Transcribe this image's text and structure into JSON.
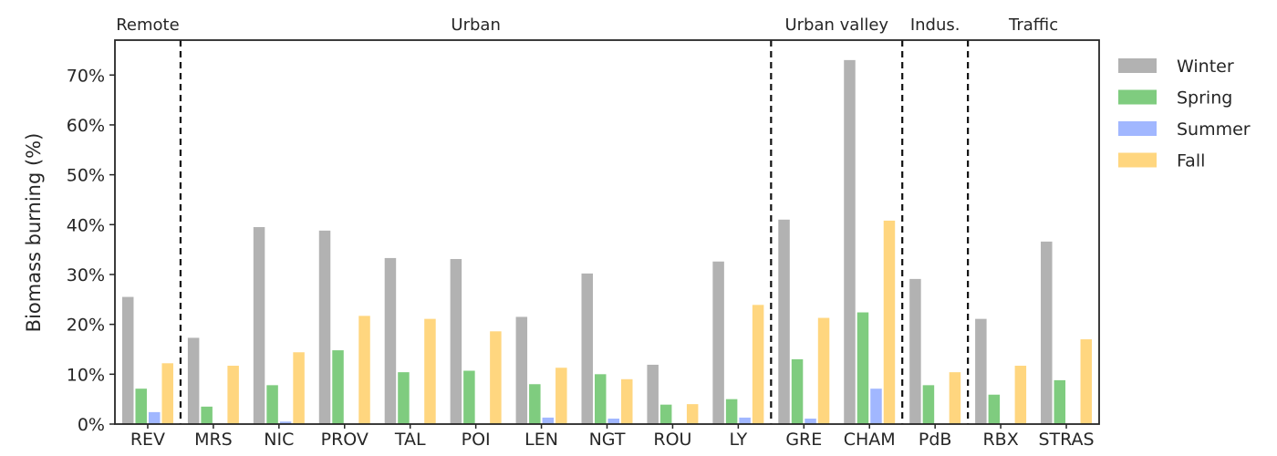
{
  "chart_data": {
    "type": "bar",
    "title": "",
    "xlabel": "",
    "ylabel": "Biomass burning (%)",
    "ylim": [
      0,
      77
    ],
    "y_ticks": [
      0,
      10,
      20,
      30,
      40,
      50,
      60,
      70
    ],
    "y_tick_labels": [
      "0%",
      "10%",
      "20%",
      "30%",
      "40%",
      "50%",
      "60%",
      "70%"
    ],
    "categories": [
      "REV",
      "MRS",
      "NIC",
      "PROV",
      "TAL",
      "POI",
      "LEN",
      "NGT",
      "ROU",
      "LY",
      "GRE",
      "CHAM",
      "PdB",
      "RBX",
      "STRAS"
    ],
    "series": [
      {
        "name": "Winter",
        "color": "#b2b2b2",
        "values": [
          25.5,
          17.3,
          39.5,
          38.8,
          33.3,
          33.1,
          21.5,
          30.2,
          11.9,
          32.6,
          41.0,
          73.0,
          29.1,
          21.1,
          36.6
        ]
      },
      {
        "name": "Spring",
        "color": "#7fcc7f",
        "values": [
          7.1,
          3.5,
          7.8,
          14.8,
          10.4,
          10.7,
          8.0,
          10.0,
          3.9,
          5.0,
          13.0,
          22.4,
          7.8,
          5.9,
          8.8
        ]
      },
      {
        "name": "Summer",
        "color": "#a1b7ff",
        "values": [
          2.4,
          0,
          0.5,
          0,
          0,
          0,
          1.3,
          1.1,
          0,
          1.3,
          1.1,
          7.1,
          0,
          0,
          0
        ]
      },
      {
        "name": "Fall",
        "color": "#ffd67f",
        "values": [
          12.2,
          11.7,
          14.4,
          21.7,
          21.1,
          18.6,
          11.3,
          9.0,
          4.0,
          23.9,
          21.3,
          40.8,
          10.4,
          11.7,
          17.0
        ]
      }
    ],
    "site_groups": [
      {
        "label": "Remote",
        "first": 0,
        "last": 0
      },
      {
        "label": "Urban",
        "first": 1,
        "last": 9
      },
      {
        "label": "Urban valley",
        "first": 10,
        "last": 11
      },
      {
        "label": "Indus.",
        "first": 12,
        "last": 12
      },
      {
        "label": "Traffic",
        "first": 13,
        "last": 14
      }
    ],
    "grid": false,
    "legend_position": "right"
  }
}
